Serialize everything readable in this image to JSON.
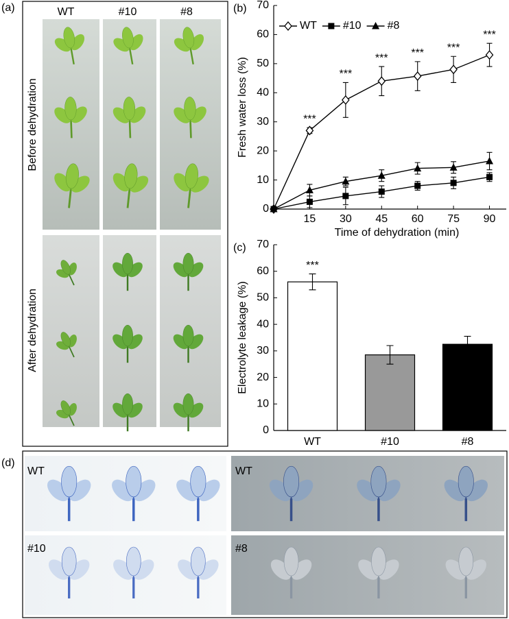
{
  "panel_a": {
    "label": "(a)",
    "columns": [
      "WT",
      "#10",
      "#8"
    ],
    "rows": [
      "Before dehydration",
      "After dehydration"
    ]
  },
  "chart_data": [
    {
      "type": "line",
      "panel_label": "(b)",
      "x_label": "Time of dehydration (min)",
      "y_label": "Fresh water loss (%)",
      "x": [
        0,
        15,
        30,
        45,
        60,
        75,
        90
      ],
      "xlim": [
        0,
        97
      ],
      "xticks": [
        15,
        30,
        45,
        60,
        75,
        90
      ],
      "ylim": [
        0,
        70
      ],
      "yticks": [
        0,
        10,
        20,
        30,
        40,
        50,
        60,
        70
      ],
      "legend": "top-left",
      "series": [
        {
          "name": "WT",
          "color": "#000000",
          "marker": "open-diamond",
          "values": [
            0,
            27,
            37.5,
            44,
            45.7,
            48,
            53
          ],
          "errors": [
            0.5,
            1,
            6,
            5,
            5,
            4.5,
            4
          ]
        },
        {
          "name": "#10",
          "color": "#000000",
          "marker": "square",
          "values": [
            0,
            2.5,
            4.5,
            6,
            8,
            9,
            11
          ],
          "errors": [
            0.5,
            2,
            3,
            2,
            1.5,
            2,
            1.5
          ]
        },
        {
          "name": "#8",
          "color": "#000000",
          "marker": "triangle",
          "values": [
            0,
            6.5,
            9.5,
            11.5,
            14,
            14.3,
            16.5
          ],
          "errors": [
            0.5,
            2,
            1.5,
            2,
            2,
            2,
            3
          ]
        }
      ],
      "annotations": [
        {
          "x": 15,
          "text": "***"
        },
        {
          "x": 30,
          "text": "***"
        },
        {
          "x": 45,
          "text": "***"
        },
        {
          "x": 60,
          "text": "***"
        },
        {
          "x": 75,
          "text": "***"
        },
        {
          "x": 90,
          "text": "***"
        }
      ]
    },
    {
      "type": "bar",
      "panel_label": "(c)",
      "y_label": "Electrolyte leakage (%)",
      "categories": [
        "WT",
        "#10",
        "#8"
      ],
      "values": [
        56,
        28.5,
        32.5
      ],
      "errors": [
        3,
        3.5,
        3
      ],
      "colors": [
        "#ffffff",
        "#999999",
        "#000000"
      ],
      "ylim": [
        0,
        70
      ],
      "yticks": [
        0,
        10,
        20,
        30,
        40,
        50,
        60,
        70
      ],
      "annotations": [
        {
          "category": "WT",
          "text": "***"
        }
      ]
    }
  ],
  "panel_d": {
    "label": "(d)",
    "left": {
      "top": "WT",
      "bottom": "#10"
    },
    "right": {
      "top": "WT",
      "bottom": "#8"
    }
  }
}
